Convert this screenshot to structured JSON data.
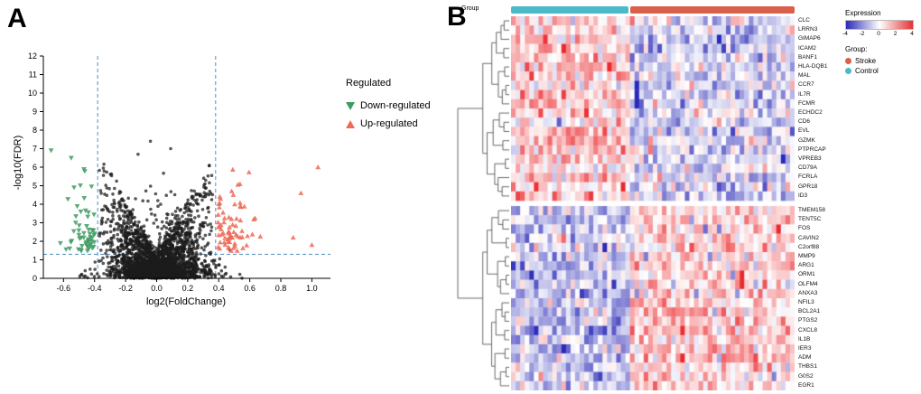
{
  "figure": {
    "panel_a": "A",
    "panel_b": "B",
    "background": "#ffffff"
  },
  "chart_data": [
    {
      "type": "scatter",
      "name": "volcano-plot",
      "xlabel": "log2(FoldChange)",
      "ylabel": "-log10(FDR)",
      "xlim": [
        -0.73,
        1.12
      ],
      "ylim": [
        0,
        12
      ],
      "xticks": [
        "-0.6",
        "-0.4",
        "-0.2",
        "0.0",
        "0.2",
        "0.4",
        "0.6",
        "0.8",
        "1.0"
      ],
      "yticks": [
        "0",
        "1",
        "2",
        "3",
        "4",
        "5",
        "6",
        "7",
        "8",
        "9",
        "10",
        "11",
        "12"
      ],
      "threshold_x": [
        -0.38,
        0.38
      ],
      "threshold_y": 1.3,
      "threshold_color": "#4f8fc0",
      "point_color": "#1c1c1c",
      "legend_title": "Regulated",
      "legend": [
        {
          "label": "Down-regulated",
          "marker": "triangle-down",
          "color": "#3f9b63"
        },
        {
          "label": "Up-regulated",
          "marker": "triangle-up",
          "color": "#ec6a56"
        }
      ],
      "generation": {
        "seed": 42,
        "n_center": 2600,
        "n_high_center": 90,
        "n_arm": 120,
        "n_down": 55,
        "n_up": 72
      }
    },
    {
      "type": "heatmap",
      "name": "expression-heatmap",
      "annotation_label": "Group",
      "row_clusters": [
        {
          "genes": [
            "CLC",
            "LRRN3",
            "GIMAP6",
            "ICAM2",
            "BANF1",
            "HLA-DQB1",
            "MAL",
            "CCR7",
            "IL7R",
            "FCMR",
            "ECHDC2",
            "CD6",
            "EVL",
            "GZMK",
            "PTPRCAP",
            "VPREB3",
            "CD79A",
            "FCRLA",
            "GPR18",
            "ID3"
          ]
        },
        {
          "genes": [
            "TMEM158",
            "TENT5C",
            "FOS",
            "CAVIN2",
            "C2orf88",
            "MMP9",
            "ARG1",
            "ORM1",
            "OLFM4",
            "ANXA3",
            "NFIL3",
            "BCL2A1",
            "PTGS2",
            "CXCL8",
            "IL1B",
            "IER3",
            "ADM",
            "THBS1",
            "G0S2",
            "EGR1"
          ]
        }
      ],
      "n_samples": 62,
      "groups": [
        {
          "name": "Control",
          "color": "#4ab9c9",
          "n_samples": 26
        },
        {
          "name": "Stroke",
          "color": "#d9604a",
          "n_samples": 36
        }
      ],
      "colorbar": {
        "title": "Expression",
        "ticks": [
          "-4",
          "-2",
          "0",
          "2",
          "4"
        ],
        "low_color": "#2a2ab8",
        "mid_color": "#ffffff",
        "high_color": "#e63232"
      },
      "group_legend_title": "Group:",
      "generation": {
        "seed": 7,
        "dendrogram_seed": 11,
        "control_mean_top": 0.95,
        "stroke_mean_top": -0.7,
        "control_mean_bottom": -1.0,
        "stroke_mean_bottom": 0.85,
        "noise_sd": 1.05,
        "outliers": [
          {
            "rows": [
              7,
              8,
              9
            ],
            "col": 27,
            "value": -4.2
          },
          {
            "rows": [
              27,
              28
            ],
            "col": 50,
            "value": 4.4
          }
        ]
      }
    }
  ]
}
